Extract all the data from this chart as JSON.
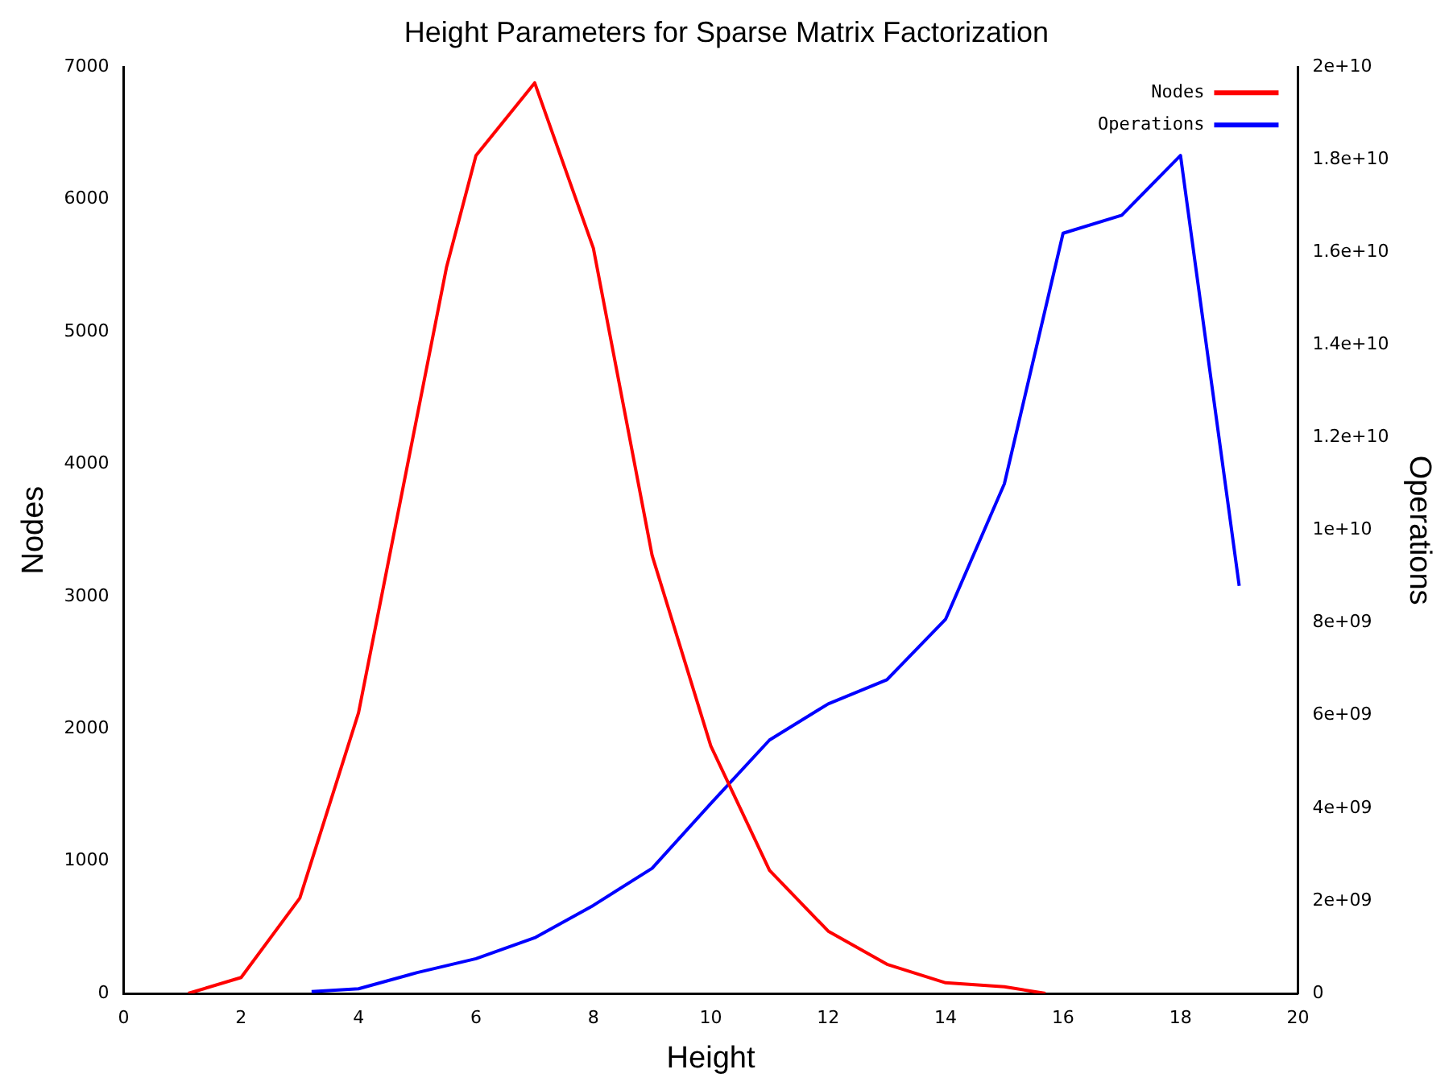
{
  "chart_data": {
    "type": "line",
    "title": "Height Parameters for Sparse Matrix Factorization",
    "xlabel": "Height",
    "ylabel": "Nodes",
    "y2label": "Operations",
    "series": [
      {
        "name": "Nodes",
        "color": "#ff0000",
        "x": [
          1.1,
          2,
          3,
          4,
          5.5,
          6,
          7,
          8,
          9,
          10,
          11,
          12,
          13,
          14,
          15,
          15.7
        ],
        "values": [
          0,
          120,
          720,
          2120,
          5490,
          6330,
          6880,
          5630,
          3310,
          1870,
          930,
          470,
          220,
          80,
          50,
          0
        ]
      },
      {
        "name": "Operations",
        "color": "#0000ff",
        "axis": "y2",
        "x": [
          3.2,
          4,
          5,
          6,
          7,
          8,
          9,
          10,
          11,
          12,
          13,
          14,
          15,
          16,
          17,
          18,
          19
        ],
        "values": [
          40000000.0,
          100000000.0,
          450000000.0,
          750000000.0,
          1200000000.0,
          1900000000.0,
          2700000000.0,
          4100000000.0,
          5470000000.0,
          6250000000.0,
          6770000000.0,
          8080000000.0,
          11000000000.0,
          16410000000.0,
          16800000000.0,
          18090000000.0,
          8800000000.0
        ]
      }
    ],
    "xlim": [
      0,
      20
    ],
    "xticks": [
      0,
      2,
      4,
      6,
      8,
      10,
      12,
      14,
      16,
      18,
      20
    ],
    "ylim": [
      0,
      7000
    ],
    "yticks": [
      0,
      1000,
      2000,
      3000,
      4000,
      5000,
      6000,
      7000
    ],
    "y2lim": [
      0,
      20000000000.0
    ],
    "y2ticks": [
      0,
      {
        "value": 2000000000.0,
        "label": "2e+09"
      },
      {
        "value": 4000000000.0,
        "label": "4e+09"
      },
      {
        "value": 6000000000.0,
        "label": "6e+09"
      },
      {
        "value": 8000000000.0,
        "label": "8e+09"
      },
      {
        "value": 10000000000.0,
        "label": "1e+10"
      },
      {
        "value": 12000000000.0,
        "label": "1.2e+10"
      },
      {
        "value": 14000000000.0,
        "label": "1.4e+10"
      },
      {
        "value": 16000000000.0,
        "label": "1.6e+10"
      },
      {
        "value": 18000000000.0,
        "label": "1.8e+10"
      },
      {
        "value": 20000000000.0,
        "label": "2e+10"
      }
    ],
    "grid": false,
    "legend": "top right",
    "marker": "none",
    "line_style": "solid"
  }
}
